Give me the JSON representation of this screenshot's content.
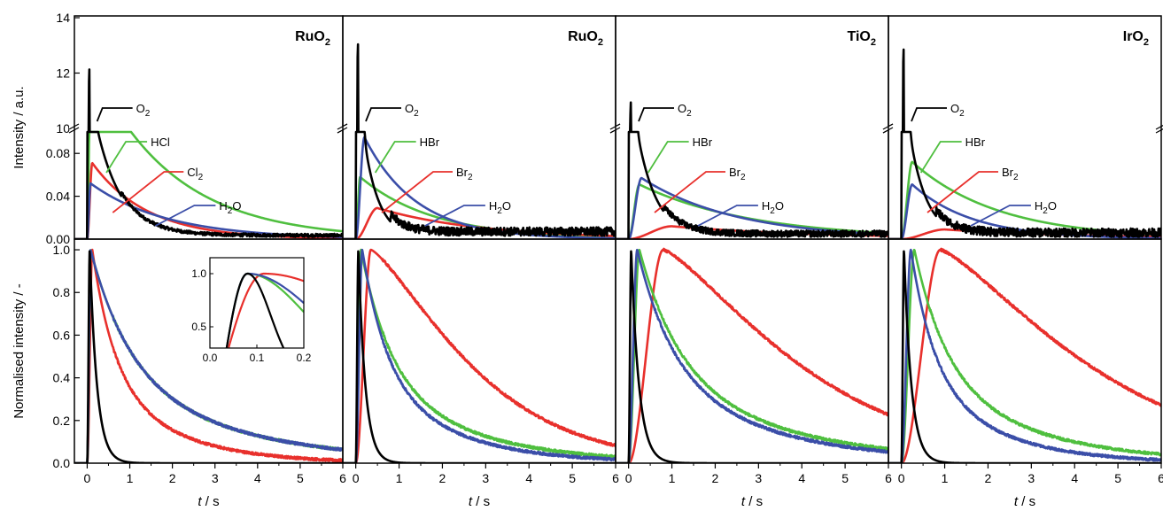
{
  "chart_data": {
    "type": "line",
    "layout": "4 columns x 2 rows (top: intensity, bottom: normalised)",
    "ylabel_top": "Intensity / a.u.",
    "ylabel_bottom": "Normalised intensity / -",
    "xlabel_main": "t",
    "xlabel_unit": " / s",
    "xlim": [
      -0.3,
      6
    ],
    "x_ticks": [
      "0",
      "1",
      "2",
      "3",
      "4",
      "5",
      "6"
    ],
    "top_ylim_upper": [
      10,
      14
    ],
    "top_ylim_lower": [
      0,
      0.1
    ],
    "top_yticks_upper": [
      "10",
      "12",
      "14"
    ],
    "top_yticks_lower": [
      "0.00",
      "0.04",
      "0.08"
    ],
    "bottom_ylim": [
      0,
      1.05
    ],
    "bottom_yticks": [
      "0.0",
      "0.2",
      "0.4",
      "0.6",
      "0.8",
      "1.0"
    ],
    "colors": {
      "O2": "#000000",
      "HX": "#4fbf3f",
      "X2": "#e8302c",
      "H2O": "#3b4ea8"
    },
    "panels": [
      {
        "title_main": "RuO",
        "title_sub": "2",
        "halide": "HCl",
        "halogen_main": "Cl",
        "halogen_sub": "2",
        "top": {
          "O2": {
            "peak": 12.55,
            "peak_t": 0.05,
            "base": 0.0035,
            "decay": 0.6,
            "noise": 0.0015
          },
          "HX": {
            "peak": 0.165,
            "peak_t": 0.08,
            "base": 0.0,
            "decay": 1.9,
            "noise": 0.0
          },
          "X2": {
            "peak": 0.071,
            "peak_t": 0.12,
            "base": 0.0,
            "decay": 1.3,
            "noise": 0.0
          },
          "H2O": {
            "peak": 0.052,
            "peak_t": 0.08,
            "base": 0.0,
            "decay": 1.8,
            "noise": 0.0
          }
        },
        "bottom": {
          "O2": {
            "peak_t": 0.06,
            "decay": 0.17
          },
          "HX": {
            "peak_t": 0.08,
            "decay": 2.0
          },
          "X2": {
            "peak_t": 0.12,
            "decay": 1.1
          },
          "H2O": {
            "peak_t": 0.08,
            "decay": 2.0
          }
        },
        "inset": {
          "xlim": [
            0.0,
            0.2
          ],
          "ylim": [
            0.3,
            1.15
          ],
          "x_ticks": [
            "0.0",
            "0.1",
            "0.2"
          ],
          "y_ticks": [
            "0.5",
            "1.0"
          ]
        }
      },
      {
        "title_main": "RuO",
        "title_sub": "2",
        "halide": "HBr",
        "halogen_main": "Br",
        "halogen_sub": "2",
        "top": {
          "O2": {
            "peak": 13.5,
            "peak_t": 0.05,
            "base": 0.007,
            "decay": 0.35,
            "noise": 0.004
          },
          "HX": {
            "peak": 0.058,
            "peak_t": 0.1,
            "base": 0.0,
            "decay": 1.7,
            "noise": 0.0
          },
          "X2": {
            "peak": 0.029,
            "peak_t": 0.5,
            "base": 0.0,
            "decay": 2.4,
            "noise": 0.0
          },
          "H2O": {
            "peak": 0.095,
            "peak_t": 0.2,
            "base": 0.0,
            "decay": 1.2,
            "noise": 0.0
          }
        },
        "bottom": {
          "O2": {
            "peak_t": 0.06,
            "decay": 0.16
          },
          "HX": {
            "peak_t": 0.12,
            "decay": 1.45
          },
          "X2": {
            "peak_t": 0.35,
            "decay": 1.75
          },
          "H2O": {
            "peak_t": 0.15,
            "decay": 1.2
          }
        }
      },
      {
        "title_main": "TiO",
        "title_sub": "2",
        "halide": "HBr",
        "halogen_main": "Br",
        "halogen_sub": "2",
        "top": {
          "O2": {
            "peak": 11.3,
            "peak_t": 0.05,
            "base": 0.005,
            "decay": 0.45,
            "noise": 0.003
          },
          "HX": {
            "peak": 0.051,
            "peak_t": 0.25,
            "base": 0.0,
            "decay": 2.6,
            "noise": 0.0
          },
          "X2": {
            "peak": 0.012,
            "peak_t": 1.0,
            "base": 0.0,
            "decay": 3.5,
            "noise": 0.0
          },
          "H2O": {
            "peak": 0.057,
            "peak_t": 0.3,
            "base": 0.0,
            "decay": 2.2,
            "noise": 0.0
          }
        },
        "bottom": {
          "O2": {
            "peak_t": 0.06,
            "decay": 0.18
          },
          "HX": {
            "peak_t": 0.25,
            "decay": 2.0
          },
          "X2": {
            "peak_t": 0.8,
            "decay": 2.4
          },
          "H2O": {
            "peak_t": 0.2,
            "decay": 1.8
          }
        }
      },
      {
        "title_main": "IrO",
        "title_sub": "2",
        "halide": "HBr",
        "halogen_main": "Br",
        "halogen_sub": "2",
        "top": {
          "O2": {
            "peak": 13.3,
            "peak_t": 0.05,
            "base": 0.006,
            "decay": 0.4,
            "noise": 0.004
          },
          "HX": {
            "peak": 0.072,
            "peak_t": 0.25,
            "base": 0.0,
            "decay": 2.0,
            "noise": 0.0
          },
          "X2": {
            "peak": 0.009,
            "peak_t": 1.0,
            "base": 0.0,
            "decay": 3.5,
            "noise": 0.0
          },
          "H2O": {
            "peak": 0.051,
            "peak_t": 0.25,
            "base": 0.0,
            "decay": 1.4,
            "noise": 0.0
          }
        },
        "bottom": {
          "O2": {
            "peak_t": 0.06,
            "decay": 0.17
          },
          "HX": {
            "peak_t": 0.3,
            "decay": 1.6
          },
          "X2": {
            "peak_t": 0.9,
            "decay": 2.6
          },
          "H2O": {
            "peak_t": 0.22,
            "decay": 1.15
          }
        }
      }
    ],
    "annotations": {
      "O2_main": "O",
      "O2_sub": "2",
      "H2O_main": "H",
      "H2O_sub": "2",
      "H2O_tail": "O"
    }
  }
}
